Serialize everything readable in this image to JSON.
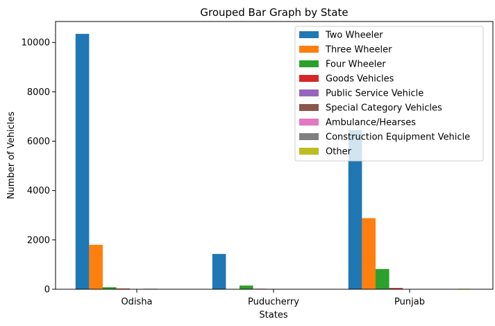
{
  "chart_data": {
    "type": "bar",
    "title": "Grouped Bar Graph by State",
    "xlabel": "States",
    "ylabel": "Number of Vehicles",
    "categories": [
      "Odisha",
      "Puducherry",
      "Punjab"
    ],
    "ylim": [
      0,
      10850
    ],
    "yticks": [
      0,
      2000,
      4000,
      6000,
      8000,
      10000
    ],
    "legend_position": "top-right",
    "grid": false,
    "series": [
      {
        "name": "Two Wheeler",
        "color": "#1f77b4",
        "values": [
          10350,
          1430,
          6450
        ]
      },
      {
        "name": "Three Wheeler",
        "color": "#ff7f0e",
        "values": [
          1800,
          5,
          2880
        ]
      },
      {
        "name": "Four Wheeler",
        "color": "#2ca02c",
        "values": [
          80,
          150,
          820
        ]
      },
      {
        "name": "Goods Vehicles",
        "color": "#d62728",
        "values": [
          30,
          20,
          50
        ]
      },
      {
        "name": "Public Service Vehicle",
        "color": "#9467bd",
        "values": [
          5,
          15,
          10
        ]
      },
      {
        "name": "Special Category Vehicles",
        "color": "#8c564b",
        "values": [
          20,
          3,
          5
        ]
      },
      {
        "name": "Ambulance/Hearses",
        "color": "#e377c2",
        "values": [
          3,
          2,
          3
        ]
      },
      {
        "name": "Construction Equipment Vehicle",
        "color": "#7f7f7f",
        "values": [
          3,
          2,
          5
        ]
      },
      {
        "name": "Other",
        "color": "#bcbd22",
        "values": [
          15,
          3,
          20
        ]
      }
    ]
  }
}
